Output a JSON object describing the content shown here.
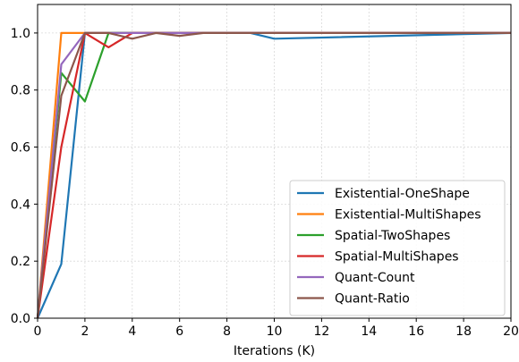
{
  "chart_data": {
    "type": "line",
    "xlabel": "Iterations (K)",
    "ylabel": "",
    "xlim": [
      0,
      20
    ],
    "ylim": [
      0,
      1.1
    ],
    "xticks": [
      0,
      2,
      4,
      6,
      8,
      10,
      12,
      14,
      16,
      18,
      20
    ],
    "xtick_labels": [
      "0",
      "2",
      "4",
      "6",
      "8",
      "10",
      "12",
      "14",
      "16",
      "18",
      "20"
    ],
    "yticks": [
      0.0,
      0.2,
      0.4,
      0.6,
      0.8,
      1.0
    ],
    "ytick_labels": [
      "0.0",
      "0.2",
      "0.4",
      "0.6",
      "0.8",
      "1.0"
    ],
    "grid": true,
    "legend_position": "lower-right",
    "series": [
      {
        "name": "Existential-OneShape",
        "color": "#1f77b4",
        "x": [
          0,
          1,
          2,
          3,
          4,
          5,
          6,
          7,
          8,
          9,
          10,
          20
        ],
        "y": [
          0.0,
          0.19,
          1.0,
          1.0,
          1.0,
          1.0,
          1.0,
          1.0,
          1.0,
          1.0,
          0.98,
          1.0
        ]
      },
      {
        "name": "Existential-MultiShapes",
        "color": "#ff7f0e",
        "x": [
          0,
          1,
          2,
          3,
          4,
          5,
          6,
          7,
          8,
          9,
          10,
          20
        ],
        "y": [
          0.0,
          1.0,
          1.0,
          1.0,
          1.0,
          1.0,
          1.0,
          1.0,
          1.0,
          1.0,
          1.0,
          1.0
        ]
      },
      {
        "name": "Spatial-TwoShapes",
        "color": "#2ca02c",
        "x": [
          0,
          1,
          2,
          3,
          4,
          5,
          6,
          7,
          8,
          9,
          10,
          20
        ],
        "y": [
          0.0,
          0.86,
          0.76,
          1.0,
          1.0,
          1.0,
          1.0,
          1.0,
          1.0,
          1.0,
          1.0,
          1.0
        ]
      },
      {
        "name": "Spatial-MultiShapes",
        "color": "#d62728",
        "x": [
          0,
          1,
          2,
          3,
          4,
          5,
          6,
          7,
          8,
          9,
          10,
          20
        ],
        "y": [
          0.0,
          0.6,
          1.0,
          0.95,
          1.0,
          1.0,
          1.0,
          1.0,
          1.0,
          1.0,
          1.0,
          1.0
        ]
      },
      {
        "name": "Quant-Count",
        "color": "#9467bd",
        "x": [
          0,
          1,
          2,
          3,
          4,
          5,
          6,
          7,
          8,
          9,
          10,
          20
        ],
        "y": [
          0.0,
          0.89,
          1.0,
          1.0,
          1.0,
          1.0,
          1.0,
          1.0,
          1.0,
          1.0,
          1.0,
          1.0
        ]
      },
      {
        "name": "Quant-Ratio",
        "color": "#8c564b",
        "x": [
          0,
          1,
          2,
          3,
          4,
          5,
          6,
          7,
          8,
          9,
          10,
          20
        ],
        "y": [
          0.0,
          0.78,
          1.0,
          1.0,
          0.98,
          1.0,
          0.99,
          1.0,
          1.0,
          1.0,
          1.0,
          1.0
        ]
      }
    ]
  }
}
